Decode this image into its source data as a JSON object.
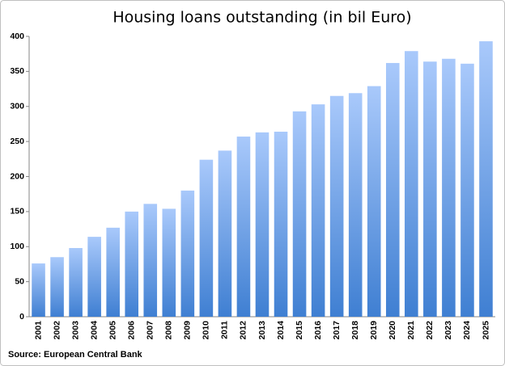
{
  "chart_data": {
    "type": "bar",
    "title": "Housing loans outstanding (in bil Euro)",
    "source": "Source: European Central Bank",
    "categories": [
      "2001",
      "2002",
      "2003",
      "2004",
      "2005",
      "2006",
      "2007",
      "2008",
      "2009",
      "2010",
      "2011",
      "2012",
      "2013",
      "2014",
      "2015",
      "2016",
      "2017",
      "2018",
      "2019",
      "2020",
      "2021",
      "2022",
      "2023",
      "2024",
      "2025"
    ],
    "values": [
      76,
      85,
      98,
      114,
      127,
      150,
      161,
      154,
      180,
      224,
      237,
      257,
      263,
      264,
      293,
      303,
      315,
      319,
      329,
      362,
      379,
      364,
      368,
      361,
      393
    ],
    "gradient": [
      "#a9c9fb",
      "#3f7fd2"
    ],
    "ylim": [
      0,
      400
    ],
    "yticks": [
      0,
      50,
      100,
      150,
      200,
      250,
      300,
      350,
      400
    ],
    "grid": false
  }
}
